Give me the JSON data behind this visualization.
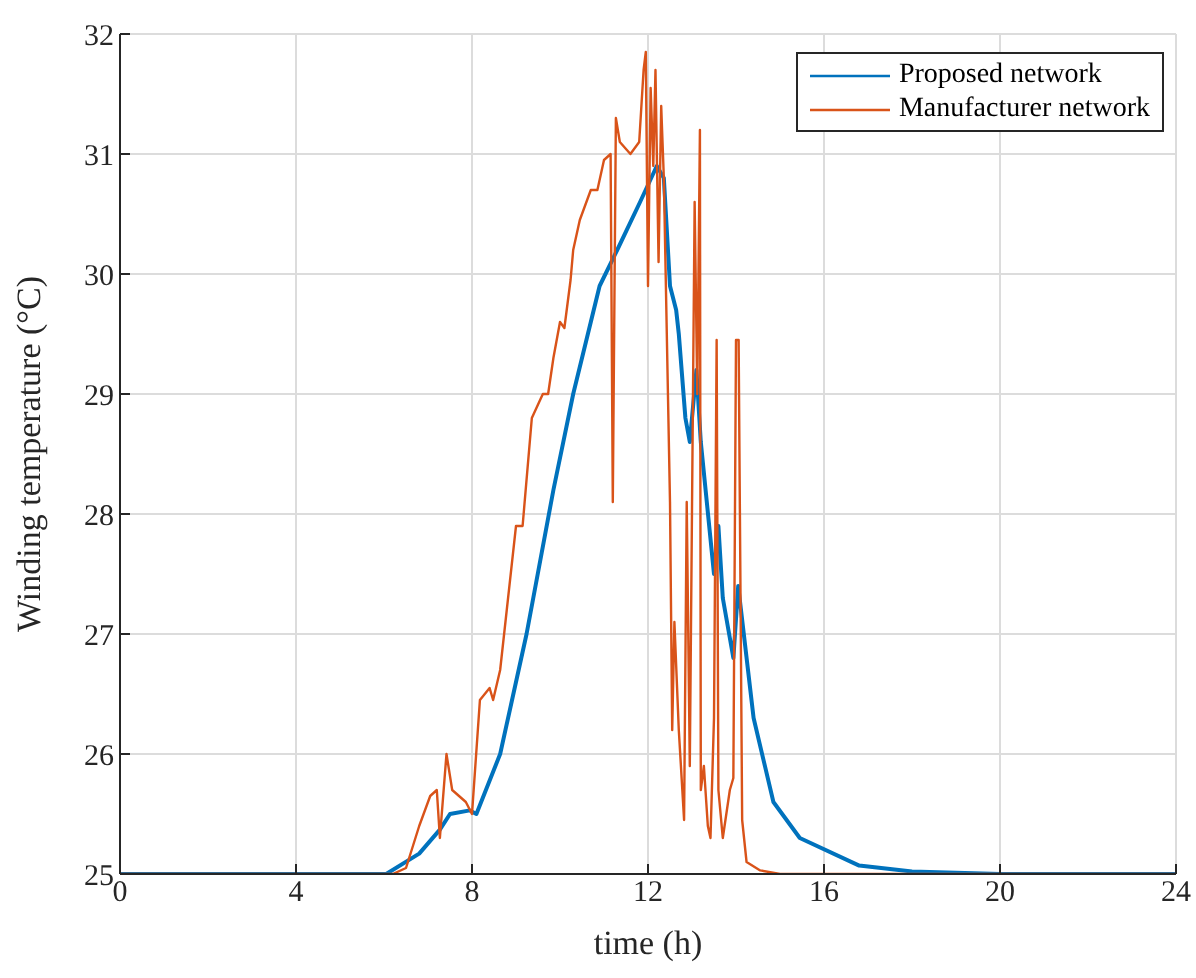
{
  "chart_data": {
    "type": "line",
    "xlabel": "time (h)",
    "ylabel": "Winding temperature (°C)",
    "xlim": [
      0,
      24
    ],
    "xticks": [
      0,
      4,
      8,
      12,
      16,
      20,
      24
    ],
    "ylim": [
      25,
      32
    ],
    "yticks": [
      25,
      26,
      27,
      28,
      29,
      30,
      31,
      32
    ],
    "grid": true,
    "legend": "top right",
    "marker": "none",
    "line_style": "solid",
    "series": [
      {
        "name": "Proposed network",
        "color": "#0072bd",
        "x": [
          0,
          6.05,
          6.8,
          7.27,
          7.5,
          7.95,
          8.1,
          8.64,
          9.24,
          9.85,
          10.3,
          10.7,
          10.9,
          11.3,
          11.82,
          12.2,
          12.36,
          12.5,
          12.64,
          12.7,
          12.85,
          12.95,
          13.1,
          13.2,
          13.5,
          13.6,
          13.7,
          13.94,
          14.05,
          14.4,
          14.85,
          15.45,
          16.8,
          18,
          20,
          24
        ],
        "values": [
          25,
          25,
          25.17,
          25.37,
          25.5,
          25.53,
          25.5,
          26,
          27,
          28.2,
          29,
          29.6,
          29.9,
          30.2,
          30.6,
          30.9,
          30.8,
          29.9,
          29.7,
          29.5,
          28.8,
          28.6,
          29.2,
          28.6,
          27.5,
          27.9,
          27.3,
          26.8,
          27.4,
          26.3,
          25.6,
          25.3,
          25.07,
          25.02,
          25,
          25
        ]
      },
      {
        "name": "Manufacturer network",
        "color": "#d95319",
        "x": [
          0,
          6.2,
          6.5,
          6.8,
          7.05,
          7.2,
          7.27,
          7.42,
          7.55,
          7.86,
          8,
          8.18,
          8.4,
          8.48,
          8.64,
          8.79,
          9,
          9.15,
          9.36,
          9.61,
          9.73,
          9.85,
          10,
          10.1,
          10.24,
          10.3,
          10.45,
          10.7,
          10.85,
          11,
          11.15,
          11.2,
          11.27,
          11.36,
          11.6,
          11.8,
          11.9,
          11.95,
          12,
          12.06,
          12.12,
          12.17,
          12.24,
          12.3,
          12.36,
          12.5,
          12.55,
          12.6,
          12.7,
          12.82,
          12.88,
          12.95,
          13.06,
          13.12,
          13.18,
          13.2,
          13.27,
          13.36,
          13.42,
          13.5,
          13.56,
          13.6,
          13.7,
          13.86,
          13.94,
          14,
          14.06,
          14.14,
          14.24,
          14.55,
          15,
          24
        ],
        "values": [
          25,
          25,
          25.05,
          25.4,
          25.65,
          25.7,
          25.3,
          26,
          25.7,
          25.6,
          25.5,
          26.45,
          26.55,
          26.45,
          26.7,
          27.2,
          27.9,
          27.9,
          28.8,
          29,
          29,
          29.3,
          29.6,
          29.55,
          29.95,
          30.2,
          30.45,
          30.7,
          30.7,
          30.95,
          31,
          28.1,
          31.3,
          31.1,
          31,
          31.1,
          31.7,
          31.85,
          29.9,
          31.55,
          30.9,
          31.7,
          30.1,
          31.4,
          30.8,
          28.1,
          26.2,
          27.1,
          26.2,
          25.45,
          28.1,
          25.9,
          30.6,
          29,
          31.2,
          25.7,
          25.9,
          25.4,
          25.3,
          26.3,
          29.45,
          25.7,
          25.3,
          25.7,
          25.8,
          29.45,
          29.45,
          25.45,
          25.1,
          25.03,
          25,
          25
        ]
      }
    ]
  }
}
